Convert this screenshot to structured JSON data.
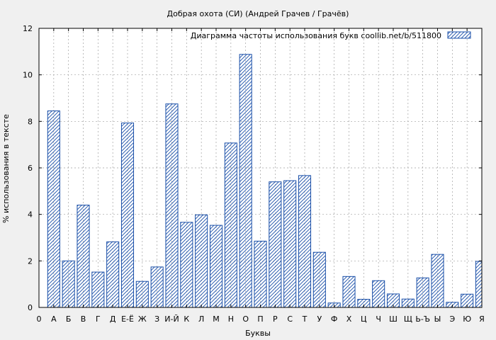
{
  "chart_data": {
    "type": "bar",
    "title": "Добрая охота (СИ) (Андрей Грачев / Грачёв)",
    "xlabel": "Буквы",
    "ylabel": "% использования в тексте",
    "ylim": [
      0,
      12
    ],
    "yticks": [
      "0",
      "2",
      "4",
      "6",
      "8",
      "10",
      "12"
    ],
    "xticks": [
      "0",
      "А",
      "Б",
      "В",
      "Г",
      "Д",
      "Е-Ё",
      "Ж",
      "З",
      "И-Й",
      "К",
      "Л",
      "М",
      "Н",
      "О",
      "П",
      "Р",
      "С",
      "Т",
      "У",
      "Ф",
      "Х",
      "Ц",
      "Ч",
      "Ш",
      "Щ",
      "Ь-Ъ",
      "Ы",
      "Э",
      "Ю",
      "Я"
    ],
    "categories": [
      "А",
      "Б",
      "В",
      "Г",
      "Д",
      "Е-Ё",
      "Ж",
      "З",
      "И-Й",
      "К",
      "Л",
      "М",
      "Н",
      "О",
      "П",
      "Р",
      "С",
      "Т",
      "У",
      "Ф",
      "Х",
      "Ц",
      "Ч",
      "Ш",
      "Щ",
      "Ь-Ъ",
      "Ы",
      "Э",
      "Ю",
      "Я"
    ],
    "values": [
      8.45,
      2.0,
      4.4,
      1.52,
      2.82,
      7.93,
      1.12,
      1.74,
      8.75,
      3.66,
      3.98,
      3.53,
      7.07,
      10.88,
      2.85,
      5.4,
      5.45,
      5.67,
      2.37,
      0.19,
      1.33,
      0.35,
      1.15,
      0.58,
      0.36,
      1.27,
      2.28,
      0.22,
      0.57,
      1.98
    ],
    "series": [
      {
        "name": "Диаграмма частоты использования букв  coollib.net/b/511800"
      }
    ],
    "legend_position": "top-right",
    "grid": true,
    "colors": {
      "bar_stroke": "#1a4fa8",
      "hatch": "#1a4fa8",
      "grid": "#a0a0a0",
      "plot_bg": "#ffffff",
      "page_bg": "#f0f0f0"
    }
  }
}
